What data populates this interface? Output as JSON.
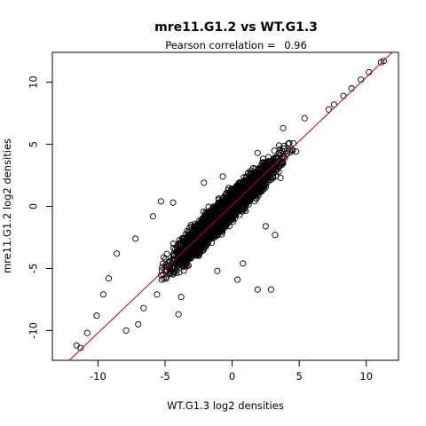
{
  "chart_data": {
    "type": "scatter",
    "title": "mre11.G1.2 vs WT.G1.3",
    "subtitle_prefix": "Pearson correlation =",
    "subtitle_value": "0.96",
    "xlabel": "WT.G1.3 log2 densities",
    "ylabel": "mre11.G1.2 log2 densities",
    "xlim": [
      -13.4,
      12.4
    ],
    "ylim": [
      -12.4,
      12.4
    ],
    "xticks": [
      -10,
      -5,
      0,
      5,
      10
    ],
    "yticks": [
      -10,
      -5,
      0,
      5,
      10
    ],
    "grid": false,
    "legend": "none",
    "point_color": "#000000",
    "fit_line": {
      "slope": 1.03,
      "intercept": 0.1,
      "color": "#cc0000"
    },
    "dense_cloud": {
      "x_range": [
        -8.5,
        7.5
      ],
      "slope": 1.03,
      "intercept": 0.1,
      "spread": 1.3
    },
    "outliers": [
      [
        11.3,
        11.7
      ],
      [
        11.1,
        11.6
      ],
      [
        10.2,
        10.8
      ],
      [
        9.6,
        10.2
      ],
      [
        8.9,
        9.5
      ],
      [
        8.3,
        8.9
      ],
      [
        7.6,
        8.2
      ],
      [
        7.2,
        7.8
      ],
      [
        5.4,
        7.1
      ],
      [
        3.8,
        6.3
      ],
      [
        3.5,
        4.9
      ],
      [
        1.9,
        4.3
      ],
      [
        -0.7,
        2.4
      ],
      [
        -2.1,
        1.9
      ],
      [
        -4.4,
        0.3
      ],
      [
        -5.3,
        0.4
      ],
      [
        -5.9,
        -0.8
      ],
      [
        -7.2,
        -2.6
      ],
      [
        -8.6,
        -3.8
      ],
      [
        -9.2,
        -5.8
      ],
      [
        -9.6,
        -7.1
      ],
      [
        -10.1,
        -8.8
      ],
      [
        -10.8,
        -10.2
      ],
      [
        -11.6,
        -11.2
      ],
      [
        -11.3,
        -11.4
      ],
      [
        -7.9,
        -10.0
      ],
      [
        -7.0,
        -9.5
      ],
      [
        -4.0,
        -8.7
      ],
      [
        -3.8,
        -7.3
      ],
      [
        0.4,
        -5.9
      ],
      [
        1.9,
        -6.7
      ],
      [
        2.9,
        -6.7
      ],
      [
        0.8,
        -4.6
      ],
      [
        3.2,
        -2.3
      ],
      [
        2.5,
        -1.6
      ],
      [
        -1.1,
        -5.2
      ],
      [
        -5.6,
        -7.1
      ],
      [
        -6.6,
        -8.2
      ]
    ]
  }
}
